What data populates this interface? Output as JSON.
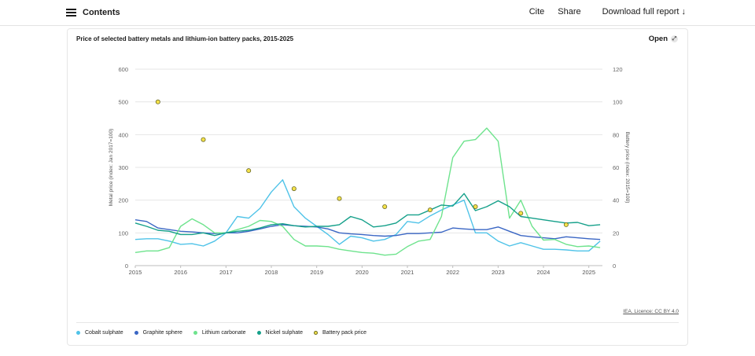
{
  "header": {
    "contents_label": "Contents",
    "cite_label": "Cite",
    "share_label": "Share",
    "download_label": "Download full report ↓"
  },
  "card": {
    "open_label": "Open",
    "licence": "IEA. Licence: CC BY 4.0"
  },
  "chart_data": {
    "type": "line",
    "title": "Price of selected battery metals and lithium-ion battery packs, 2015-2025",
    "ylabel": "Metal price (index: Jan 2017=100)",
    "y2label": "Battery price (index: 2015=100)",
    "ylim": [
      0,
      600
    ],
    "y2lim": [
      0,
      120
    ],
    "yticks": [
      "600",
      "500",
      "400",
      "300",
      "200",
      "100",
      "0"
    ],
    "y2ticks": [
      "120",
      "100",
      "80",
      "60",
      "40",
      "20",
      "0"
    ],
    "xlim": [
      2015,
      2025.3
    ],
    "xticks": [
      "2015",
      "2016",
      "2017",
      "2018",
      "2019",
      "2020",
      "2021",
      "2022",
      "2023",
      "2024",
      "2025"
    ],
    "grid": true,
    "legend_position": "bottom",
    "series": [
      {
        "name": "Cobalt sulphate",
        "color": "#4fc3e8",
        "axis": "left",
        "kind": "line",
        "points": [
          [
            2015,
            80
          ],
          [
            2015.25,
            82
          ],
          [
            2015.5,
            82
          ],
          [
            2015.75,
            75
          ],
          [
            2016,
            65
          ],
          [
            2016.25,
            67
          ],
          [
            2016.5,
            60
          ],
          [
            2016.75,
            75
          ],
          [
            2017,
            100
          ],
          [
            2017.25,
            150
          ],
          [
            2017.5,
            145
          ],
          [
            2017.75,
            175
          ],
          [
            2018,
            225
          ],
          [
            2018.25,
            262
          ],
          [
            2018.5,
            180
          ],
          [
            2018.75,
            145
          ],
          [
            2019,
            120
          ],
          [
            2019.25,
            95
          ],
          [
            2019.5,
            65
          ],
          [
            2019.75,
            90
          ],
          [
            2020,
            85
          ],
          [
            2020.25,
            75
          ],
          [
            2020.5,
            80
          ],
          [
            2020.75,
            95
          ],
          [
            2021,
            135
          ],
          [
            2021.25,
            130
          ],
          [
            2021.5,
            152
          ],
          [
            2021.75,
            170
          ],
          [
            2022,
            185
          ],
          [
            2022.25,
            200
          ],
          [
            2022.5,
            100
          ],
          [
            2022.75,
            100
          ],
          [
            2023,
            75
          ],
          [
            2023.25,
            60
          ],
          [
            2023.5,
            70
          ],
          [
            2023.75,
            60
          ],
          [
            2024,
            50
          ],
          [
            2024.25,
            50
          ],
          [
            2024.5,
            48
          ],
          [
            2024.75,
            45
          ],
          [
            2025,
            45
          ],
          [
            2025.25,
            75
          ]
        ]
      },
      {
        "name": "Graphite sphere",
        "color": "#3a66c4",
        "axis": "left",
        "kind": "line",
        "points": [
          [
            2015,
            140
          ],
          [
            2015.25,
            135
          ],
          [
            2015.5,
            115
          ],
          [
            2015.75,
            110
          ],
          [
            2016,
            105
          ],
          [
            2016.25,
            103
          ],
          [
            2016.5,
            100
          ],
          [
            2016.75,
            98
          ],
          [
            2017,
            100
          ],
          [
            2017.25,
            100
          ],
          [
            2017.5,
            105
          ],
          [
            2017.75,
            112
          ],
          [
            2018,
            120
          ],
          [
            2018.25,
            125
          ],
          [
            2018.5,
            122
          ],
          [
            2018.75,
            120
          ],
          [
            2019,
            118
          ],
          [
            2019.25,
            112
          ],
          [
            2019.5,
            100
          ],
          [
            2019.75,
            97
          ],
          [
            2020,
            95
          ],
          [
            2020.25,
            92
          ],
          [
            2020.5,
            90
          ],
          [
            2020.75,
            92
          ],
          [
            2021,
            98
          ],
          [
            2021.25,
            98
          ],
          [
            2021.5,
            100
          ],
          [
            2021.75,
            102
          ],
          [
            2022,
            115
          ],
          [
            2022.25,
            112
          ],
          [
            2022.5,
            110
          ],
          [
            2022.75,
            110
          ],
          [
            2023,
            118
          ],
          [
            2023.25,
            105
          ],
          [
            2023.5,
            92
          ],
          [
            2023.75,
            88
          ],
          [
            2024,
            85
          ],
          [
            2024.25,
            82
          ],
          [
            2024.5,
            88
          ],
          [
            2024.75,
            85
          ],
          [
            2025,
            82
          ],
          [
            2025.25,
            80
          ]
        ]
      },
      {
        "name": "Lithium carbonate",
        "color": "#6ee38d",
        "axis": "left",
        "kind": "line",
        "points": [
          [
            2015,
            40
          ],
          [
            2015.25,
            45
          ],
          [
            2015.5,
            45
          ],
          [
            2015.75,
            55
          ],
          [
            2016,
            120
          ],
          [
            2016.25,
            143
          ],
          [
            2016.5,
            125
          ],
          [
            2016.75,
            100
          ],
          [
            2017,
            100
          ],
          [
            2017.25,
            110
          ],
          [
            2017.5,
            120
          ],
          [
            2017.75,
            138
          ],
          [
            2018,
            135
          ],
          [
            2018.25,
            120
          ],
          [
            2018.5,
            80
          ],
          [
            2018.75,
            60
          ],
          [
            2019,
            60
          ],
          [
            2019.25,
            58
          ],
          [
            2019.5,
            50
          ],
          [
            2019.75,
            45
          ],
          [
            2020,
            40
          ],
          [
            2020.25,
            38
          ],
          [
            2020.5,
            32
          ],
          [
            2020.75,
            35
          ],
          [
            2021,
            58
          ],
          [
            2021.25,
            75
          ],
          [
            2021.5,
            80
          ],
          [
            2021.75,
            150
          ],
          [
            2022,
            330
          ],
          [
            2022.25,
            380
          ],
          [
            2022.5,
            385
          ],
          [
            2022.75,
            420
          ],
          [
            2023,
            380
          ],
          [
            2023.25,
            145
          ],
          [
            2023.5,
            200
          ],
          [
            2023.75,
            120
          ],
          [
            2024,
            78
          ],
          [
            2024.25,
            80
          ],
          [
            2024.5,
            65
          ],
          [
            2024.75,
            58
          ],
          [
            2025,
            60
          ],
          [
            2025.25,
            55
          ]
        ]
      },
      {
        "name": "Nickel sulphate",
        "color": "#15a08a",
        "axis": "left",
        "kind": "line",
        "points": [
          [
            2015,
            130
          ],
          [
            2015.25,
            120
          ],
          [
            2015.5,
            108
          ],
          [
            2015.75,
            105
          ],
          [
            2016,
            95
          ],
          [
            2016.25,
            95
          ],
          [
            2016.5,
            100
          ],
          [
            2016.75,
            92
          ],
          [
            2017,
            100
          ],
          [
            2017.25,
            105
          ],
          [
            2017.5,
            108
          ],
          [
            2017.75,
            115
          ],
          [
            2018,
            125
          ],
          [
            2018.25,
            128
          ],
          [
            2018.5,
            122
          ],
          [
            2018.75,
            118
          ],
          [
            2019,
            120
          ],
          [
            2019.25,
            120
          ],
          [
            2019.5,
            125
          ],
          [
            2019.75,
            150
          ],
          [
            2020,
            140
          ],
          [
            2020.25,
            118
          ],
          [
            2020.5,
            122
          ],
          [
            2020.75,
            130
          ],
          [
            2021,
            155
          ],
          [
            2021.25,
            155
          ],
          [
            2021.5,
            170
          ],
          [
            2021.75,
            185
          ],
          [
            2022,
            182
          ],
          [
            2022.25,
            220
          ],
          [
            2022.5,
            168
          ],
          [
            2022.75,
            180
          ],
          [
            2023,
            198
          ],
          [
            2023.25,
            180
          ],
          [
            2023.5,
            150
          ],
          [
            2023.75,
            145
          ],
          [
            2024,
            140
          ],
          [
            2024.25,
            135
          ],
          [
            2024.5,
            130
          ],
          [
            2024.75,
            132
          ],
          [
            2025,
            122
          ],
          [
            2025.25,
            125
          ]
        ]
      },
      {
        "name": "Battery pack price",
        "color": "#f5e24a",
        "stroke": "#6b6a28",
        "axis": "right",
        "kind": "scatter",
        "points": [
          [
            2015.5,
            100
          ],
          [
            2016.5,
            77
          ],
          [
            2017.5,
            58
          ],
          [
            2018.5,
            47
          ],
          [
            2019.5,
            41
          ],
          [
            2020.5,
            36
          ],
          [
            2021.5,
            34
          ],
          [
            2022.5,
            36
          ],
          [
            2023.5,
            32
          ],
          [
            2024.5,
            25
          ]
        ]
      }
    ]
  }
}
